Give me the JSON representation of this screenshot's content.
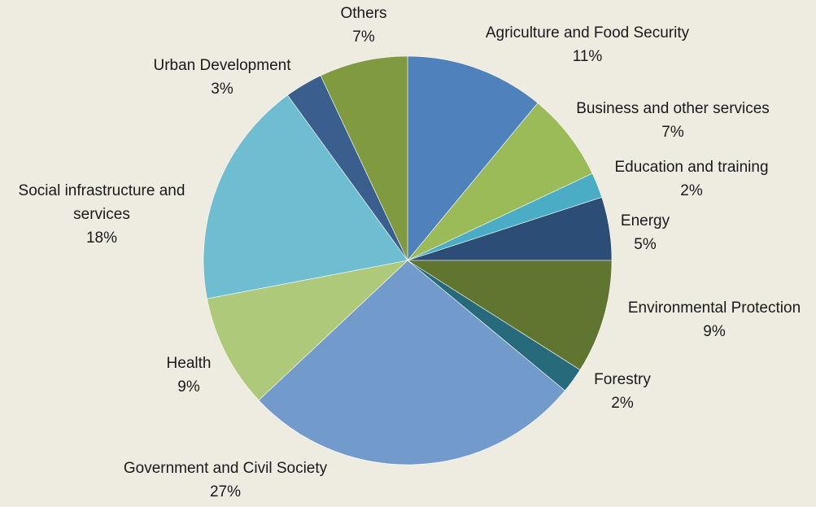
{
  "chart_data": {
    "type": "pie",
    "title": "",
    "slices": [
      {
        "label": "Agriculture and Food Security",
        "label_lines": [
          "Agriculture and Food Security"
        ],
        "value": 11,
        "value_label": "11%",
        "color": "#4f81bd"
      },
      {
        "label": "Business and other services",
        "label_lines": [
          "Business and other services"
        ],
        "value": 7,
        "value_label": "7%",
        "color": "#9bbb59"
      },
      {
        "label": "Education and training",
        "label_lines": [
          "Education and training"
        ],
        "value": 2,
        "value_label": "2%",
        "color": "#4bacc6"
      },
      {
        "label": "Energy",
        "label_lines": [
          "Energy"
        ],
        "value": 5,
        "value_label": "5%",
        "color": "#2c4d75"
      },
      {
        "label": "Environmental Protection",
        "label_lines": [
          "Environmental Protection"
        ],
        "value": 9,
        "value_label": "9%",
        "color": "#5f7530"
      },
      {
        "label": "Forestry",
        "label_lines": [
          "Forestry"
        ],
        "value": 2,
        "value_label": "2%",
        "color": "#276a7c"
      },
      {
        "label": "Government and Civil Society",
        "label_lines": [
          "Government and Civil Society"
        ],
        "value": 27,
        "value_label": "27%",
        "color": "#729aca"
      },
      {
        "label": "Health",
        "label_lines": [
          "Health"
        ],
        "value": 9,
        "value_label": "9%",
        "color": "#afc97a"
      },
      {
        "label": "Social infrastructure and services",
        "label_lines": [
          "Social infrastructure  and",
          "services"
        ],
        "value": 18,
        "value_label": "18%",
        "color": "#6fbdd1"
      },
      {
        "label": "Urban Development",
        "label_lines": [
          "Urban Development"
        ],
        "value": 3,
        "value_label": "3%",
        "color": "#3a5f8f"
      },
      {
        "label": "Others",
        "label_lines": [
          "Others"
        ],
        "value": 7,
        "value_label": "7%",
        "color": "#7f9a3f"
      }
    ],
    "start_angle": "12 o'clock",
    "direction": "clockwise",
    "legend": "none"
  }
}
